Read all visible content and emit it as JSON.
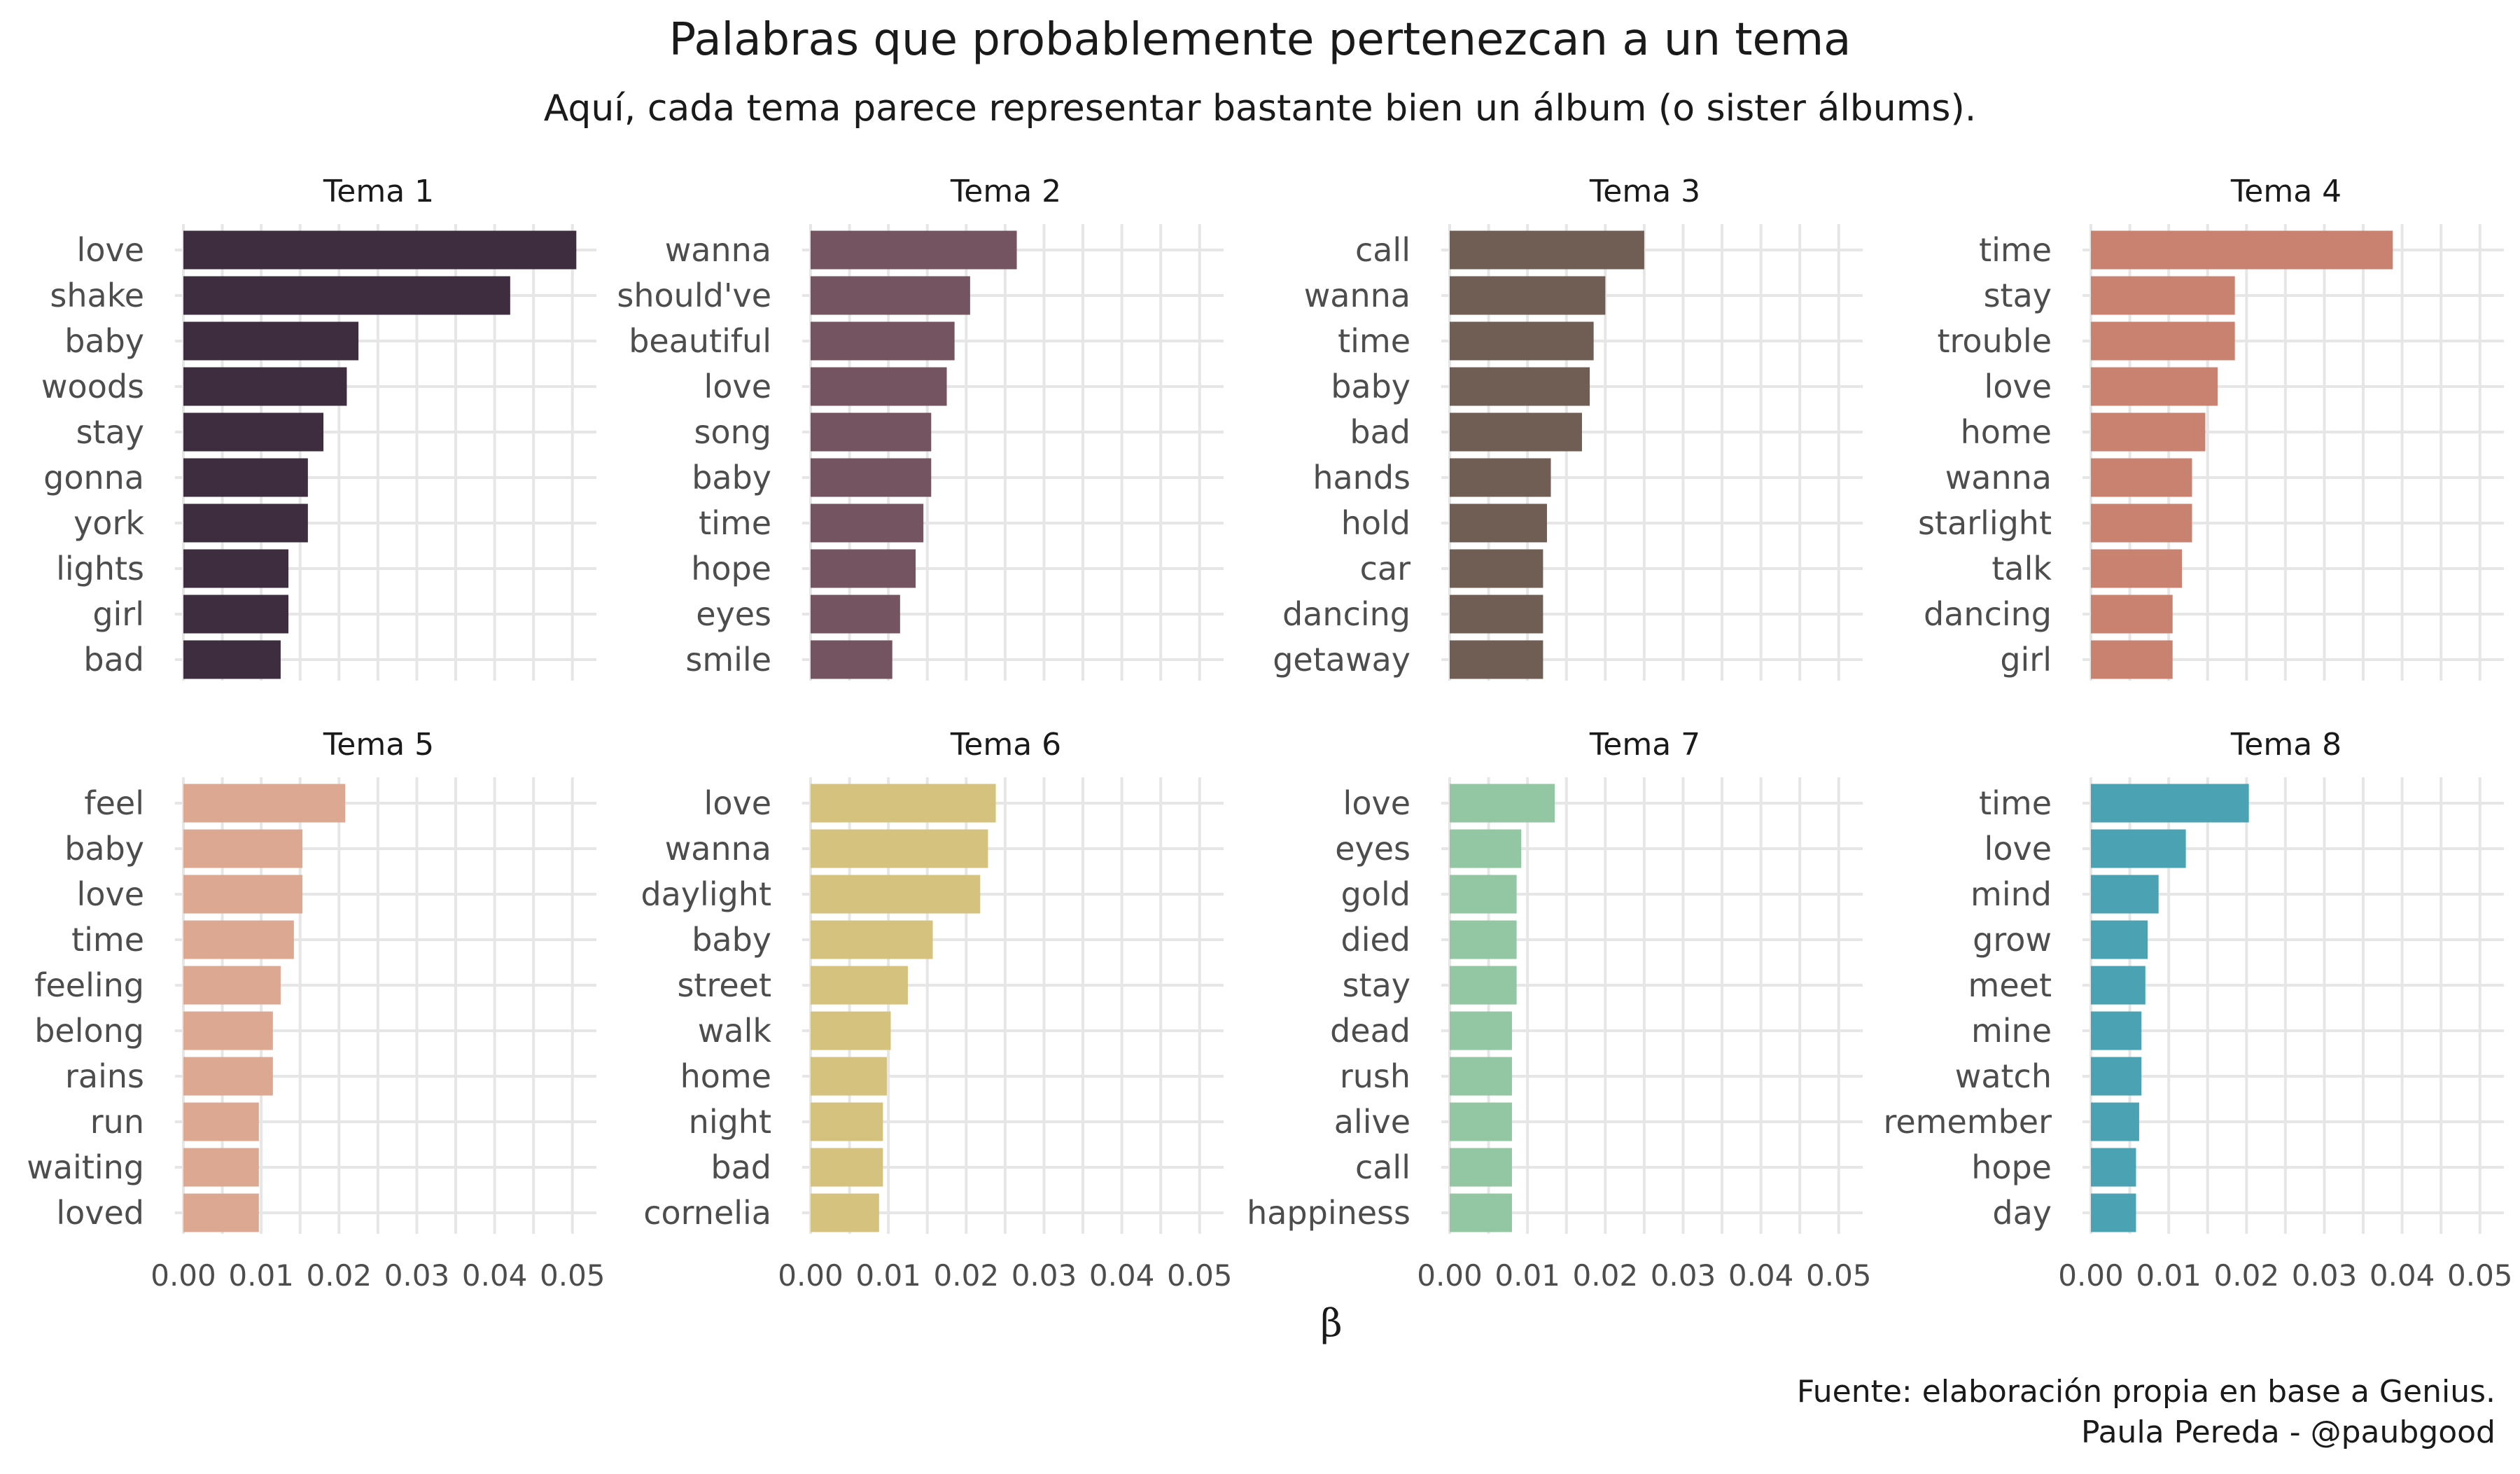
{
  "title": "Palabras que probablemente pertenezcan a un tema",
  "subtitle": "Aquí, cada tema parece representar bastante bien un álbum (o sister álbums).",
  "caption": [
    "Fuente: elaboración propia en base a Genius.",
    "Paula Pereda - @paubgood"
  ],
  "chart_data": {
    "type": "bar",
    "orientation": "horizontal",
    "xlabel": "β",
    "xlim": [
      0,
      0.052
    ],
    "xticks": [
      "0.00",
      "0.01",
      "0.02",
      "0.03",
      "0.04",
      "0.05"
    ],
    "grid": true,
    "facets": [
      {
        "name": "Tema 1",
        "color": "#3e2c3f",
        "categories": [
          "love",
          "shake",
          "baby",
          "woods",
          "stay",
          "gonna",
          "york",
          "lights",
          "girl",
          "bad"
        ],
        "values": [
          0.0505,
          0.042,
          0.0225,
          0.021,
          0.018,
          0.016,
          0.016,
          0.0135,
          0.0135,
          0.0125
        ]
      },
      {
        "name": "Tema 2",
        "color": "#755462",
        "categories": [
          "wanna",
          "should've",
          "beautiful",
          "love",
          "song",
          "baby",
          "time",
          "hope",
          "eyes",
          "smile"
        ],
        "values": [
          0.0265,
          0.0205,
          0.0185,
          0.0175,
          0.0155,
          0.0155,
          0.0145,
          0.0135,
          0.0115,
          0.0105
        ]
      },
      {
        "name": "Tema 3",
        "color": "#705d53",
        "categories": [
          "call",
          "wanna",
          "time",
          "baby",
          "bad",
          "hands",
          "hold",
          "car",
          "dancing",
          "getaway"
        ],
        "values": [
          0.025,
          0.02,
          0.0185,
          0.018,
          0.017,
          0.013,
          0.0125,
          0.012,
          0.012,
          0.012
        ]
      },
      {
        "name": "Tema 4",
        "color": "#c98170",
        "categories": [
          "time",
          "stay",
          "trouble",
          "love",
          "home",
          "wanna",
          "starlight",
          "talk",
          "dancing",
          "girl"
        ],
        "values": [
          0.0388,
          0.0185,
          0.0185,
          0.0163,
          0.0147,
          0.013,
          0.013,
          0.0117,
          0.0105,
          0.0105
        ]
      },
      {
        "name": "Tema 5",
        "color": "#dca892",
        "categories": [
          "feel",
          "baby",
          "love",
          "time",
          "feeling",
          "belong",
          "rains",
          "run",
          "waiting",
          "loved"
        ],
        "values": [
          0.0208,
          0.0153,
          0.0153,
          0.0142,
          0.0125,
          0.0115,
          0.0115,
          0.0097,
          0.0097,
          0.0097
        ]
      },
      {
        "name": "Tema 6",
        "color": "#d4c27e",
        "categories": [
          "love",
          "wanna",
          "daylight",
          "baby",
          "street",
          "walk",
          "home",
          "night",
          "bad",
          "cornelia"
        ],
        "values": [
          0.0238,
          0.0228,
          0.0218,
          0.0157,
          0.0125,
          0.0103,
          0.0098,
          0.0093,
          0.0093,
          0.0088
        ]
      },
      {
        "name": "Tema 7",
        "color": "#93c6a2",
        "categories": [
          "love",
          "eyes",
          "gold",
          "died",
          "stay",
          "dead",
          "rush",
          "alive",
          "call",
          "happiness"
        ],
        "values": [
          0.0135,
          0.0092,
          0.0086,
          0.0086,
          0.0086,
          0.008,
          0.008,
          0.008,
          0.008,
          0.008
        ]
      },
      {
        "name": "Tema 8",
        "color": "#4aa2b2",
        "categories": [
          "time",
          "love",
          "mind",
          "grow",
          "meet",
          "mine",
          "watch",
          "remember",
          "hope",
          "day"
        ],
        "values": [
          0.0203,
          0.0122,
          0.0087,
          0.0073,
          0.007,
          0.0065,
          0.0065,
          0.0062,
          0.0058,
          0.0058
        ]
      }
    ]
  }
}
